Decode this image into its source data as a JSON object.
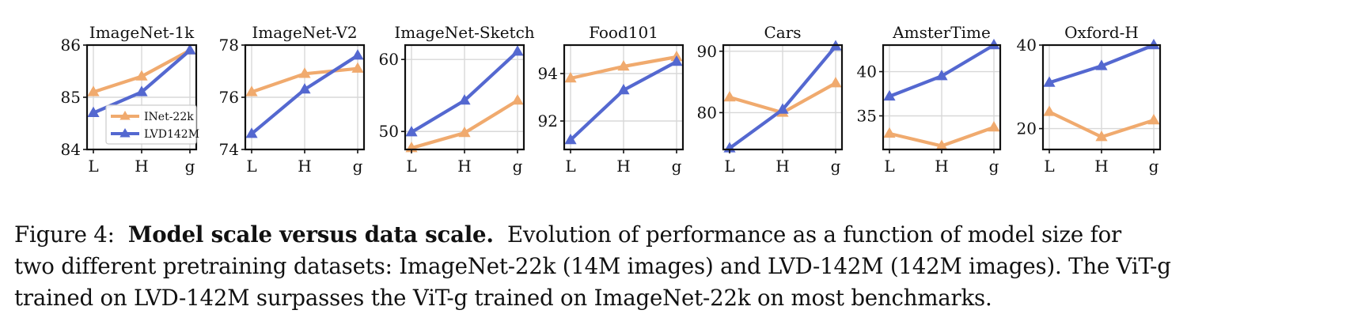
{
  "colors": {
    "inet": "#F0AA6E",
    "lvd": "#5468D0",
    "grid": "#d8d8d8",
    "axis": "#111111"
  },
  "legend": {
    "items": [
      "INet-22k",
      "LVD142M"
    ]
  },
  "chart_data": [
    {
      "type": "line",
      "title": "ImageNet-1k",
      "categories": [
        "L",
        "H",
        "g"
      ],
      "ylim": [
        84,
        86
      ],
      "yticks": [
        84,
        85,
        86
      ],
      "series": [
        {
          "name": "INet-22k",
          "values": [
            85.1,
            85.4,
            85.9
          ]
        },
        {
          "name": "LVD142M",
          "values": [
            84.7,
            85.1,
            85.9
          ]
        }
      ]
    },
    {
      "type": "line",
      "title": "ImageNet-V2",
      "categories": [
        "L",
        "H",
        "g"
      ],
      "ylim": [
        74,
        78
      ],
      "yticks": [
        74,
        76,
        78
      ],
      "series": [
        {
          "name": "INet-22k",
          "values": [
            76.2,
            76.9,
            77.1
          ]
        },
        {
          "name": "LVD142M",
          "values": [
            74.6,
            76.3,
            77.6
          ]
        }
      ]
    },
    {
      "type": "line",
      "title": "ImageNet-Sketch",
      "categories": [
        "L",
        "H",
        "g"
      ],
      "ylim": [
        47.5,
        62
      ],
      "yticks": [
        50,
        60
      ],
      "series": [
        {
          "name": "INet-22k",
          "values": [
            47.7,
            49.8,
            54.3
          ]
        },
        {
          "name": "LVD142M",
          "values": [
            49.9,
            54.3,
            61.1
          ]
        }
      ]
    },
    {
      "type": "line",
      "title": "Food101",
      "categories": [
        "L",
        "H",
        "g"
      ],
      "ylim": [
        90.8,
        95.2
      ],
      "yticks": [
        92,
        94
      ],
      "series": [
        {
          "name": "INet-22k",
          "values": [
            93.8,
            94.3,
            94.7
          ]
        },
        {
          "name": "LVD142M",
          "values": [
            91.2,
            93.3,
            94.5
          ]
        }
      ]
    },
    {
      "type": "line",
      "title": "Cars",
      "categories": [
        "L",
        "H",
        "g"
      ],
      "ylim": [
        74,
        91
      ],
      "yticks": [
        80,
        90
      ],
      "series": [
        {
          "name": "INet-22k",
          "values": [
            82.5,
            80.0,
            84.8
          ]
        },
        {
          "name": "LVD142M",
          "values": [
            74.2,
            80.5,
            90.8
          ]
        }
      ]
    },
    {
      "type": "line",
      "title": "AmsterTime",
      "categories": [
        "L",
        "H",
        "g"
      ],
      "ylim": [
        31.2,
        43
      ],
      "yticks": [
        35,
        40
      ],
      "series": [
        {
          "name": "INet-22k",
          "values": [
            33.0,
            31.6,
            33.7
          ]
        },
        {
          "name": "LVD142M",
          "values": [
            37.2,
            39.5,
            43.0
          ]
        }
      ]
    },
    {
      "type": "line",
      "title": "Oxford-H",
      "categories": [
        "L",
        "H",
        "g"
      ],
      "ylim": [
        15,
        40
      ],
      "yticks": [
        20,
        40
      ],
      "series": [
        {
          "name": "INet-22k",
          "values": [
            24.0,
            18.0,
            22.0
          ]
        },
        {
          "name": "LVD142M",
          "values": [
            31.0,
            35.0,
            40.0
          ]
        }
      ]
    }
  ],
  "caption": {
    "figure_label": "Figure 4:",
    "bold_title": "Model scale versus data scale.",
    "line1_rest": "Evolution of performance as a function of model size for",
    "line2": "two different pretraining datasets: ImageNet-22k (14M images) and LVD-142M (142M images). The ViT-g",
    "line3": "trained on LVD-142M surpasses the ViT-g trained on ImageNet-22k on most benchmarks."
  }
}
